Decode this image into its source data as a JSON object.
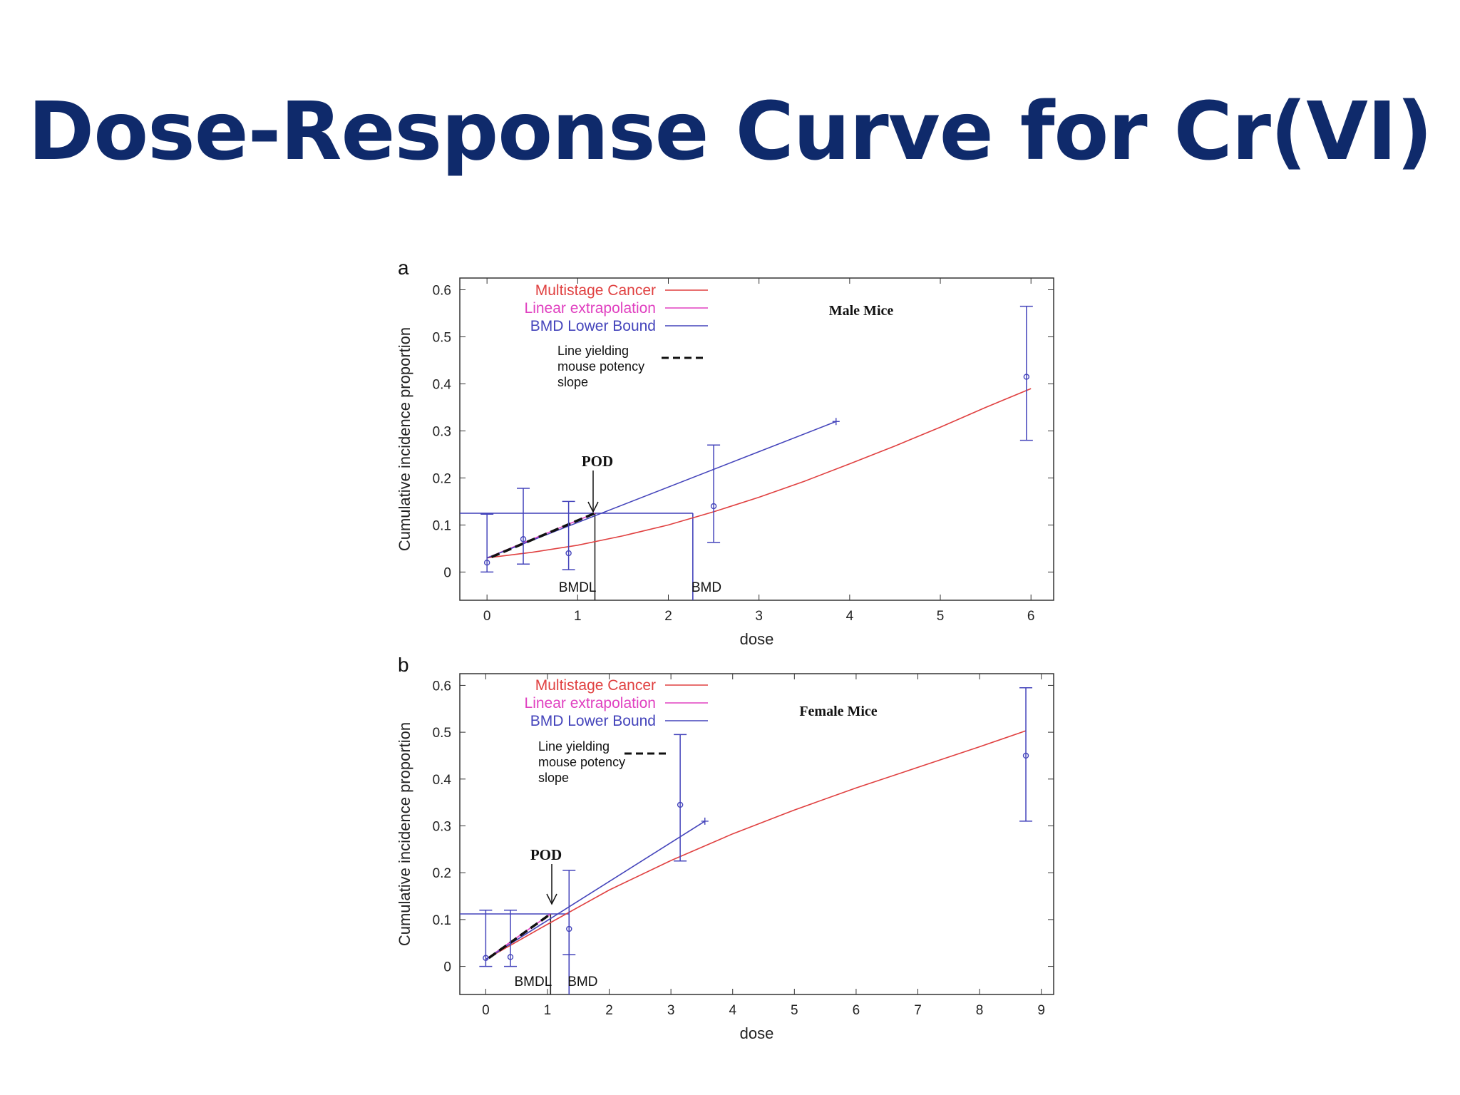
{
  "slide": {
    "title": "Dose-Response Curve for Cr(VI)"
  },
  "colors": {
    "title": "#0f2a6b",
    "multistage": "#e04040",
    "linear": "#e040c0",
    "bmd_lower": "#4444bb",
    "data": "#4444bb",
    "line_yielding": "#111111"
  },
  "chart_data": [
    {
      "panel": "a",
      "type": "line",
      "subtitle": "Male Mice",
      "xlabel": "dose",
      "ylabel": "Cumulative incidence proportion",
      "xlim": [
        -0.3,
        6.25
      ],
      "ylim": [
        -0.06,
        0.625
      ],
      "xticks": [
        0,
        1,
        2,
        3,
        4,
        5,
        6
      ],
      "xtick_labels": [
        "0",
        "1",
        "2",
        "3",
        "4",
        "5",
        "6"
      ],
      "yticks": [
        0,
        0.1,
        0.2,
        0.3,
        0.4,
        0.5,
        0.6
      ],
      "ytick_labels": [
        "0",
        "0.1",
        "0.2",
        "0.3",
        "0.4",
        "0.5",
        "0.6"
      ],
      "legend": {
        "placement": "top-left",
        "entries": [
          "Multistage Cancer",
          "Linear extrapolation",
          "BMD Lower Bound"
        ],
        "note_lines": [
          "Line yielding",
          "mouse potency",
          "slope"
        ]
      },
      "series": [
        {
          "name": "Multistage Cancer",
          "x": [
            0,
            0.5,
            1,
            1.5,
            2,
            2.5,
            3,
            3.5,
            4,
            4.5,
            5,
            5.5,
            6
          ],
          "y": [
            0.03,
            0.042,
            0.057,
            0.077,
            0.1,
            0.128,
            0.159,
            0.193,
            0.23,
            0.268,
            0.308,
            0.35,
            0.39
          ]
        },
        {
          "name": "Linear extrapolation",
          "x": [
            0,
            1.19
          ],
          "y": [
            0.03,
            0.125
          ]
        },
        {
          "name": "BMD Lower Bound",
          "x": [
            0,
            3.85
          ],
          "y": [
            0.03,
            0.32
          ]
        },
        {
          "name": "Line yielding mouse potency slope",
          "x": [
            0.05,
            1.19
          ],
          "y": [
            0.032,
            0.125
          ]
        }
      ],
      "data_points": [
        {
          "x": 0,
          "y": 0.02,
          "lo": 0.0,
          "hi": 0.123
        },
        {
          "x": 0.4,
          "y": 0.07,
          "lo": 0.017,
          "hi": 0.178
        },
        {
          "x": 0.9,
          "y": 0.04,
          "lo": 0.005,
          "hi": 0.15
        },
        {
          "x": 2.5,
          "y": 0.14,
          "lo": 0.063,
          "hi": 0.27
        },
        {
          "x": 5.95,
          "y": 0.415,
          "lo": 0.28,
          "hi": 0.565
        }
      ],
      "bmr_level": 0.125,
      "bmdl": 1.19,
      "bmd": 2.27,
      "bmdl_label": "BMDL",
      "bmd_label": "BMD",
      "pod_label": "POD"
    },
    {
      "panel": "b",
      "type": "line",
      "subtitle": "Female Mice",
      "xlabel": "dose",
      "ylabel": "Cumulative incidence proportion",
      "xlim": [
        -0.42,
        9.2
      ],
      "ylim": [
        -0.06,
        0.625
      ],
      "xticks": [
        0,
        1,
        2,
        3,
        4,
        5,
        6,
        7,
        8,
        9
      ],
      "xtick_labels": [
        "0",
        "1",
        "2",
        "3",
        "4",
        "5",
        "6",
        "7",
        "8",
        "9"
      ],
      "yticks": [
        0,
        0.1,
        0.2,
        0.3,
        0.4,
        0.5,
        0.6
      ],
      "ytick_labels": [
        "0",
        "0.1",
        "0.2",
        "0.3",
        "0.4",
        "0.5",
        "0.6"
      ],
      "legend": {
        "placement": "top-left",
        "entries": [
          "Multistage Cancer",
          "Linear extrapolation",
          "BMD Lower Bound"
        ],
        "note_lines": [
          "Line yielding",
          "mouse potency",
          "slope"
        ]
      },
      "series": [
        {
          "name": "Multistage Cancer",
          "x": [
            0,
            1,
            2,
            3,
            4,
            5,
            6,
            7,
            8,
            8.75
          ],
          "y": [
            0.015,
            0.09,
            0.163,
            0.226,
            0.283,
            0.334,
            0.381,
            0.425,
            0.469,
            0.503
          ]
        },
        {
          "name": "Linear extrapolation",
          "x": [
            0,
            1.05
          ],
          "y": [
            0.015,
            0.112
          ]
        },
        {
          "name": "BMD Lower Bound",
          "x": [
            0,
            3.55
          ],
          "y": [
            0.015,
            0.31
          ]
        },
        {
          "name": "Line yielding mouse potency slope",
          "x": [
            0.05,
            1.05
          ],
          "y": [
            0.018,
            0.112
          ]
        }
      ],
      "data_points": [
        {
          "x": 0,
          "y": 0.018,
          "lo": 0.0,
          "hi": 0.12
        },
        {
          "x": 0.4,
          "y": 0.02,
          "lo": 0.0,
          "hi": 0.12
        },
        {
          "x": 1.35,
          "y": 0.08,
          "lo": 0.025,
          "hi": 0.205
        },
        {
          "x": 3.15,
          "y": 0.345,
          "lo": 0.225,
          "hi": 0.495
        },
        {
          "x": 8.75,
          "y": 0.45,
          "lo": 0.31,
          "hi": 0.595
        }
      ],
      "bmr_level": 0.112,
      "bmdl": 1.05,
      "bmd": 1.35,
      "bmdl_label": "BMDL",
      "bmd_label": "BMD",
      "pod_label": "POD"
    }
  ]
}
